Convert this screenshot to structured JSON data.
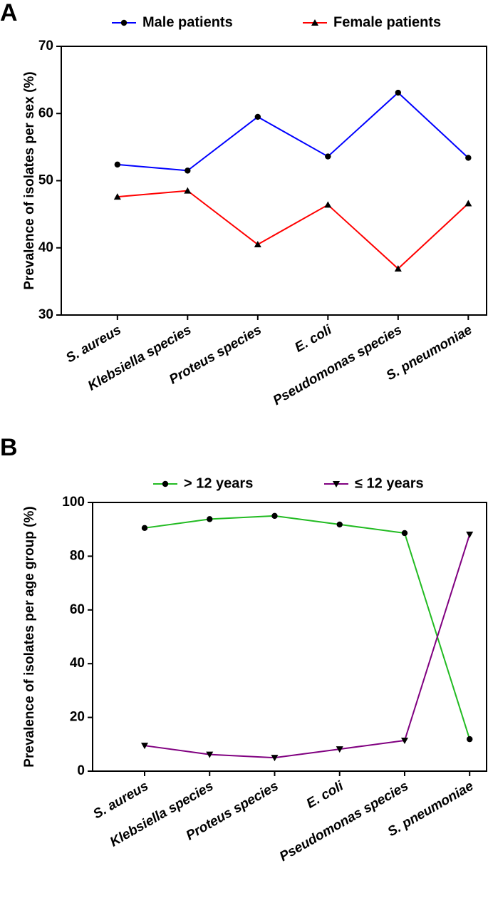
{
  "chart_data": [
    {
      "type": "line",
      "panel_label": "A",
      "y_label": "Prevalence of isolates per sex (%)",
      "categories": [
        "S. aureus",
        "Klebsiella species",
        "Proteus species",
        "E. coli",
        "Pseudomonas species",
        "S. pneumoniae"
      ],
      "series": [
        {
          "name": "Male patients",
          "color": "#0000ff",
          "marker": "circle",
          "values": [
            52.4,
            51.5,
            59.5,
            53.6,
            63.1,
            53.4
          ]
        },
        {
          "name": "Female patients",
          "color": "#ff0000",
          "marker": "triangle-up",
          "values": [
            47.6,
            48.5,
            40.5,
            46.4,
            36.9,
            46.6
          ]
        }
      ],
      "ylim": [
        30,
        70
      ],
      "yticks": [
        30,
        40,
        50,
        60,
        70
      ],
      "grid": false,
      "legend": "top"
    },
    {
      "type": "line",
      "panel_label": "B",
      "y_label": "Prevalence of isolates per age group (%)",
      "categories": [
        "S. aureus",
        "Klebsiella species",
        "Proteus species",
        "E. coli",
        "Pseudomonas species",
        "S. pneumoniae"
      ],
      "series": [
        {
          "name": "> 12 years",
          "color": "#22bb22",
          "marker": "circle",
          "values": [
            90.5,
            93.8,
            95,
            91.8,
            88.6,
            11.9
          ]
        },
        {
          "name": "≤ 12 years",
          "color": "#800080",
          "marker": "triangle-down",
          "values": [
            9.5,
            6.2,
            5,
            8.2,
            11.4,
            88.1
          ]
        }
      ],
      "ylim": [
        0,
        100
      ],
      "yticks": [
        0,
        20,
        40,
        60,
        80,
        100
      ],
      "grid": false,
      "legend": "top"
    }
  ]
}
